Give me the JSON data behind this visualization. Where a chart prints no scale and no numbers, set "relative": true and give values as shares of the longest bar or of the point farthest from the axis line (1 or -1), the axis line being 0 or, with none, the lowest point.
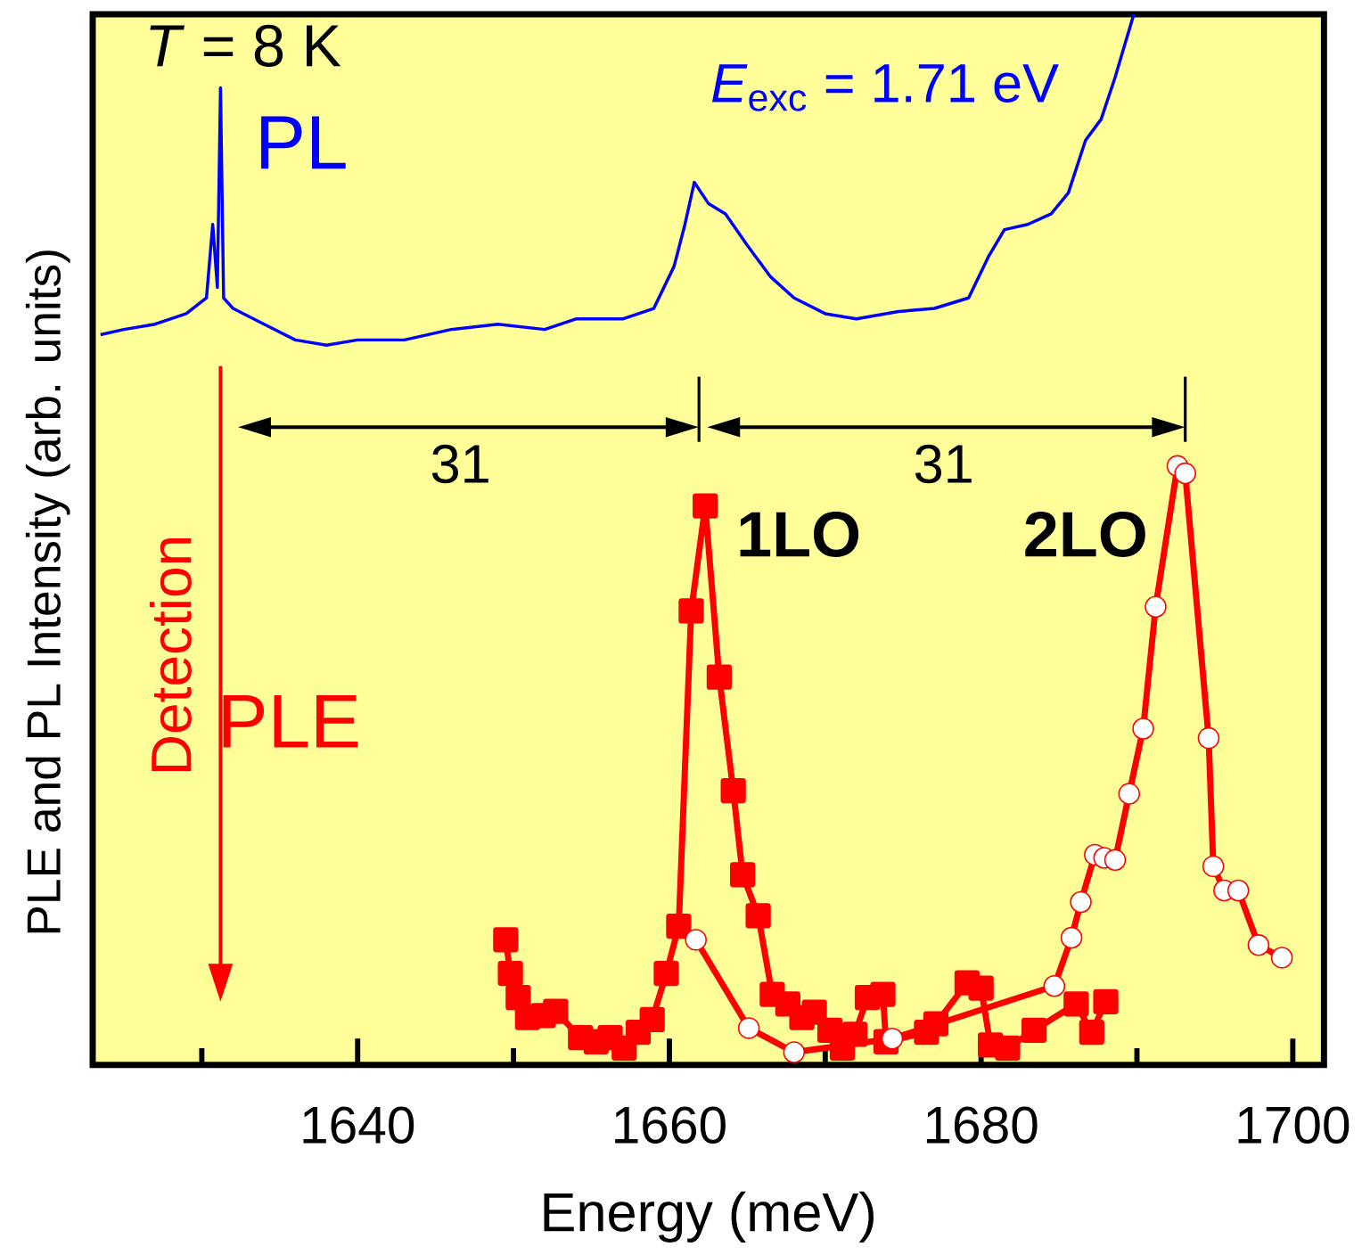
{
  "chart_data": {
    "type": "line",
    "relative": true,
    "xlabel": "Energy (meV)",
    "ylabel": "PLE and PL Intensity  (arb. units)",
    "xlim": [
      1623,
      1702
    ],
    "xticks": [
      {
        "value": 1630,
        "label": null
      },
      1640,
      {
        "value": 1650,
        "label": null
      },
      1660,
      {
        "value": 1670,
        "label": null
      },
      1680,
      {
        "value": 1690,
        "label": null
      },
      1700
    ],
    "tick_labels": "x",
    "line_style": "solid",
    "annotations": [
      "*T* = 8 K",
      "*E*$_{exc}$ = 1.71 eV",
      "1LO",
      "2LO",
      "31",
      "31",
      "Detection"
    ],
    "series": [
      {
        "name": "PL",
        "color": "#0000ff",
        "marker": "none",
        "x": [
          1623.5,
          1625,
          1627,
          1629,
          1630.3,
          1630.7,
          1631.0,
          1631.2,
          1631.4,
          1632,
          1634,
          1636,
          1638,
          1640,
          1643,
          1646,
          1649,
          1652,
          1654,
          1657,
          1659,
          1660.3,
          1661.0,
          1661.6,
          1662.5,
          1663.6,
          1665,
          1666.5,
          1668,
          1670,
          1672,
          1674.7,
          1677,
          1679.2,
          1680.5,
          1681.5,
          1683,
          1684.5,
          1685.6,
          1686.7,
          1687.7,
          1688.6,
          1689.2,
          1689.8
        ],
        "values": [
          0.695,
          0.7,
          0.705,
          0.715,
          0.73,
          0.8,
          0.74,
          0.93,
          0.73,
          0.72,
          0.705,
          0.69,
          0.685,
          0.69,
          0.69,
          0.7,
          0.705,
          0.7,
          0.71,
          0.71,
          0.72,
          0.76,
          0.8,
          0.84,
          0.82,
          0.81,
          0.78,
          0.75,
          0.73,
          0.715,
          0.71,
          0.717,
          0.72,
          0.73,
          0.77,
          0.795,
          0.8,
          0.81,
          0.83,
          0.88,
          0.9,
          0.94,
          0.97,
          1.0
        ]
      },
      {
        "name": "PLE",
        "color": "#ff0000",
        "marker": "square",
        "x": [
          1649.5,
          1649.8,
          1650.3,
          1650.9,
          1651.9,
          1652.7,
          1654.3,
          1655.3,
          1656.2,
          1657.1,
          1658.0,
          1658.9,
          1659.8,
          1660.6,
          1661.4,
          1662.3,
          1663.2,
          1664.1,
          1664.7,
          1665.7,
          1666.6,
          1667.6,
          1668.5,
          1669.3,
          1670.3,
          1671.1,
          1671.9,
          1672.7,
          1673.7,
          1673.9,
          1676.5,
          1677.1,
          1679.1,
          1680.0,
          1680.6,
          1681.7,
          1683.4,
          1686.1,
          1687.1,
          1688.0
        ],
        "values": [
          0.119,
          0.087,
          0.064,
          0.045,
          0.047,
          0.051,
          0.026,
          0.022,
          0.026,
          0.016,
          0.031,
          0.043,
          0.087,
          0.132,
          0.432,
          0.532,
          0.369,
          0.261,
          0.181,
          0.142,
          0.067,
          0.058,
          0.045,
          0.05,
          0.033,
          0.016,
          0.029,
          0.064,
          0.067,
          0.022,
          0.031,
          0.039,
          0.078,
          0.073,
          0.019,
          0.016,
          0.033,
          0.058,
          0.031,
          0.06
        ]
      },
      {
        "color": "#ff0000",
        "marker": "circle",
        "x": [
          1661.7,
          1665.1,
          1668.0,
          1674.3,
          1684.7,
          1685.8,
          1686.4,
          1687.3,
          1687.9,
          1688.6,
          1689.5,
          1690.4,
          1691.2,
          1692.6,
          1693.1,
          1694.6,
          1694.9,
          1695.6,
          1696.5,
          1697.8,
          1699.3
        ],
        "values": [
          0.119,
          0.035,
          0.012,
          0.025,
          0.075,
          0.121,
          0.155,
          0.2,
          0.197,
          0.195,
          0.258,
          0.32,
          0.436,
          0.57,
          0.563,
          0.311,
          0.189,
          0.166,
          0.166,
          0.114,
          0.102
        ]
      }
    ]
  }
}
